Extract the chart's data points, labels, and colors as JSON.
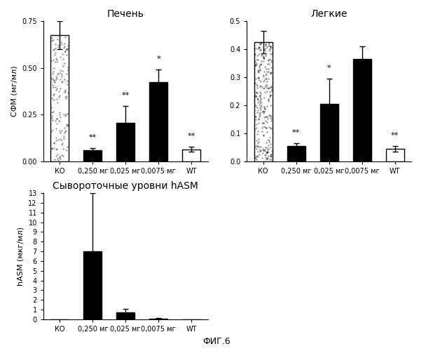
{
  "liver_title": "Печень",
  "liver_ylabel": "СФМ (мг/мл)",
  "liver_categories": [
    "КО",
    "0,250 мг",
    "0,025 мг",
    "0,0075 мг",
    "WT"
  ],
  "liver_values": [
    0.675,
    0.06,
    0.205,
    0.425,
    0.065
  ],
  "liver_errors": [
    0.075,
    0.01,
    0.09,
    0.065,
    0.012
  ],
  "liver_ylim": [
    0,
    0.75
  ],
  "liver_yticks": [
    0.0,
    0.25,
    0.5,
    0.75
  ],
  "liver_bar_colors": [
    "stipple",
    "black",
    "black",
    "black",
    "white"
  ],
  "liver_annotations": [
    "",
    "**",
    "**",
    "*",
    "**"
  ],
  "lung_title": "Легкие",
  "lung_ylabel": "",
  "lung_categories": [
    "КО",
    "0,250 мг",
    "0,025 мг",
    "0,0075 мг",
    "WT"
  ],
  "lung_values": [
    0.425,
    0.055,
    0.205,
    0.365,
    0.045
  ],
  "lung_errors": [
    0.04,
    0.01,
    0.09,
    0.045,
    0.01
  ],
  "lung_ylim": [
    0,
    0.5
  ],
  "lung_yticks": [
    0.0,
    0.1,
    0.2,
    0.3,
    0.4,
    0.5
  ],
  "lung_bar_colors": [
    "stipple",
    "black",
    "black",
    "black",
    "white"
  ],
  "lung_annotations": [
    "",
    "**",
    "*",
    "",
    "**"
  ],
  "serum_title": "Сывороточные уровни hASM",
  "serum_ylabel": "hASM (мкг/мл)",
  "serum_categories": [
    "КО",
    "0,250 мг",
    "0,025 мг",
    "0,0075 мг",
    "WT"
  ],
  "serum_values": [
    0.0,
    7.0,
    0.7,
    0.1,
    0.0
  ],
  "serum_errors": [
    0.0,
    6.0,
    0.35,
    0.05,
    0.0
  ],
  "serum_ylim": [
    0,
    13
  ],
  "serum_yticks": [
    0,
    1,
    2,
    3,
    4,
    5,
    6,
    7,
    8,
    9,
    10,
    11,
    12,
    13
  ],
  "serum_bar_colors": [
    "black",
    "black",
    "black",
    "black",
    "black"
  ],
  "footer": "ФИГ.6",
  "background_color": "#ffffff",
  "bar_width": 0.55,
  "edge_color": "black"
}
